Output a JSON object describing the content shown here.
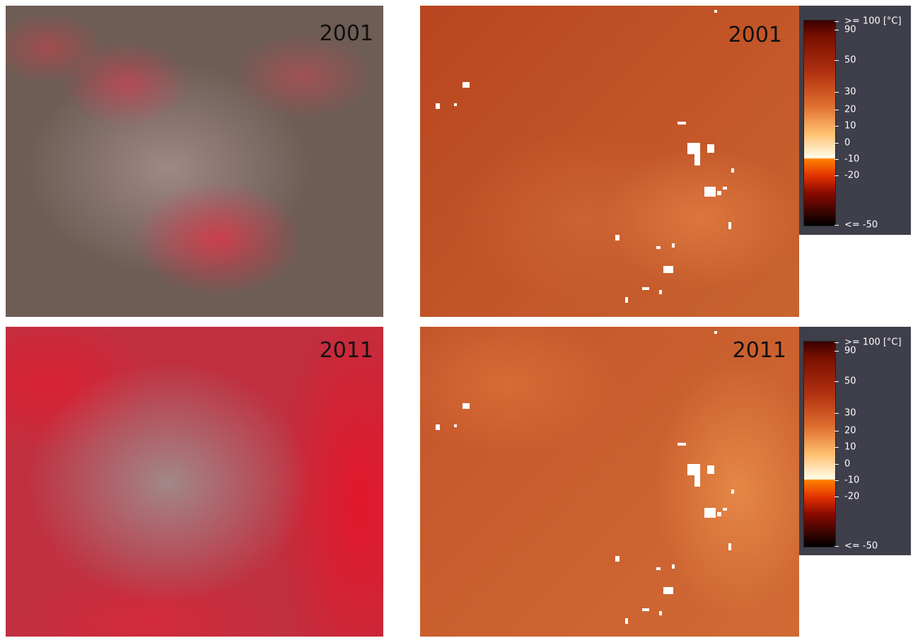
{
  "panels": [
    {
      "label": "2001"
    },
    {
      "label": "2001"
    },
    {
      "label": "2011"
    },
    {
      "label": "2011"
    }
  ],
  "colorbars": [
    {
      "ticks": [
        {
          "value": 100,
          "label": ">= 100 [°C]"
        },
        90,
        50,
        30,
        20,
        10,
        0,
        -10,
        -20,
        {
          "value": -50,
          "label": "<= -50"
        }
      ]
    },
    {
      "ticks": [
        {
          "value": 100,
          "label": ">= 100 [°C]"
        },
        90,
        50,
        30,
        20,
        10,
        0,
        -10,
        -20,
        {
          "value": -50,
          "label": "<= -50"
        }
      ]
    }
  ]
}
